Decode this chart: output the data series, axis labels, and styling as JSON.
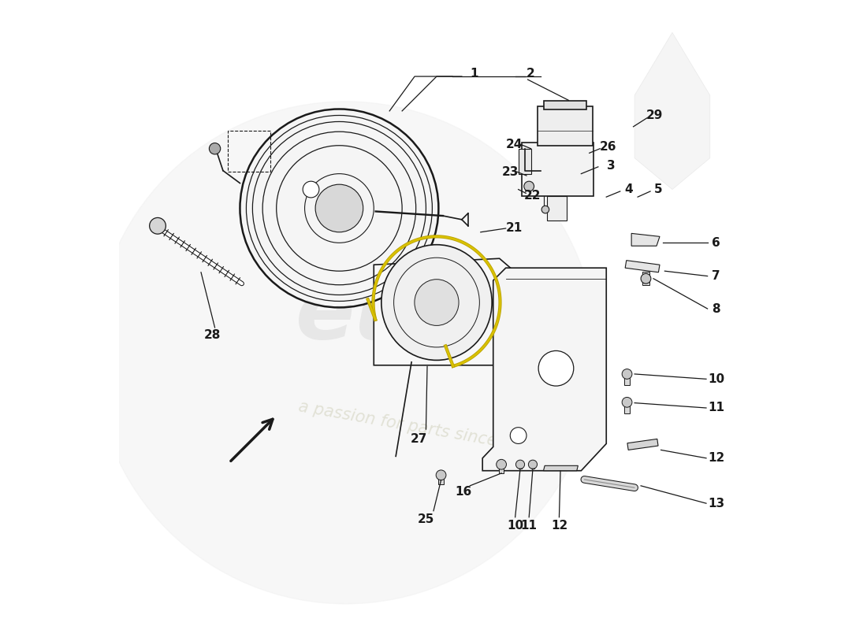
{
  "background_color": "#ffffff",
  "line_color": "#1a1a1a",
  "watermark_euros_color": "#dedede",
  "watermark_text_color": "#e8e8c0",
  "label_fontsize": 11
}
